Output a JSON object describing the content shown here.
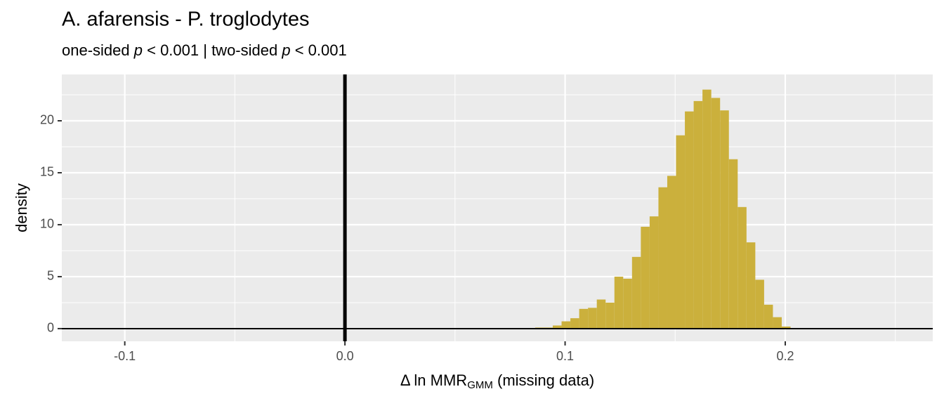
{
  "chart_data": {
    "type": "histogram",
    "title": "A. afarensis - P. troglodytes",
    "subtitle_parts": [
      {
        "text": "one-sided ",
        "style": "normal"
      },
      {
        "text": "p",
        "style": "italic"
      },
      {
        "text": " < 0.001 | two-sided ",
        "style": "normal"
      },
      {
        "text": "p",
        "style": "italic"
      },
      {
        "text": " < 0.001",
        "style": "normal"
      }
    ],
    "x_label_parts": [
      {
        "text": "Δ ln MMR",
        "style": "normal"
      },
      {
        "text": "GMM",
        "style": "subscript"
      },
      {
        "text": " (missing data)",
        "style": "normal"
      }
    ],
    "y_label": "density",
    "bins": [
      0.0784,
      0.0824,
      0.0864,
      0.0904,
      0.0944,
      0.0984,
      0.1024,
      0.1064,
      0.1104,
      0.1144,
      0.1184,
      0.1224,
      0.1264,
      0.1304,
      0.1344,
      0.1384,
      0.1424,
      0.1464,
      0.1504,
      0.1544,
      0.1584,
      0.1624,
      0.1664,
      0.1704,
      0.1744,
      0.1784,
      0.1824,
      0.1864,
      0.1904,
      0.1944,
      0.1984,
      0.2024,
      0.2064
    ],
    "values": [
      0.05,
      0.05,
      0.1,
      0.1,
      0.3,
      0.7,
      1.0,
      1.9,
      2.0,
      2.8,
      2.5,
      5.0,
      4.8,
      6.9,
      9.8,
      10.8,
      13.6,
      14.7,
      18.6,
      20.9,
      21.9,
      23.0,
      22.2,
      21.0,
      16.3,
      11.7,
      8.3,
      4.7,
      2.3,
      1.1,
      0.2,
      0.05
    ],
    "color": "#cbb03c",
    "xlim": [
      -0.1286,
      0.267
    ],
    "ylim": [
      -1.22,
      24.46
    ],
    "xticks": [
      -0.1,
      {
        "value": 0,
        "label": "0.0"
      },
      0.1,
      0.2
    ],
    "x_minor_ticks": [
      -0.05,
      0.05,
      0.15,
      0.25
    ],
    "yticks": [
      0,
      5,
      10,
      15,
      20
    ],
    "y_minor_ticks": [
      2.5,
      7.5,
      12.5,
      17.5,
      22.5
    ],
    "vline": 0,
    "hline": 0,
    "grid": true
  }
}
